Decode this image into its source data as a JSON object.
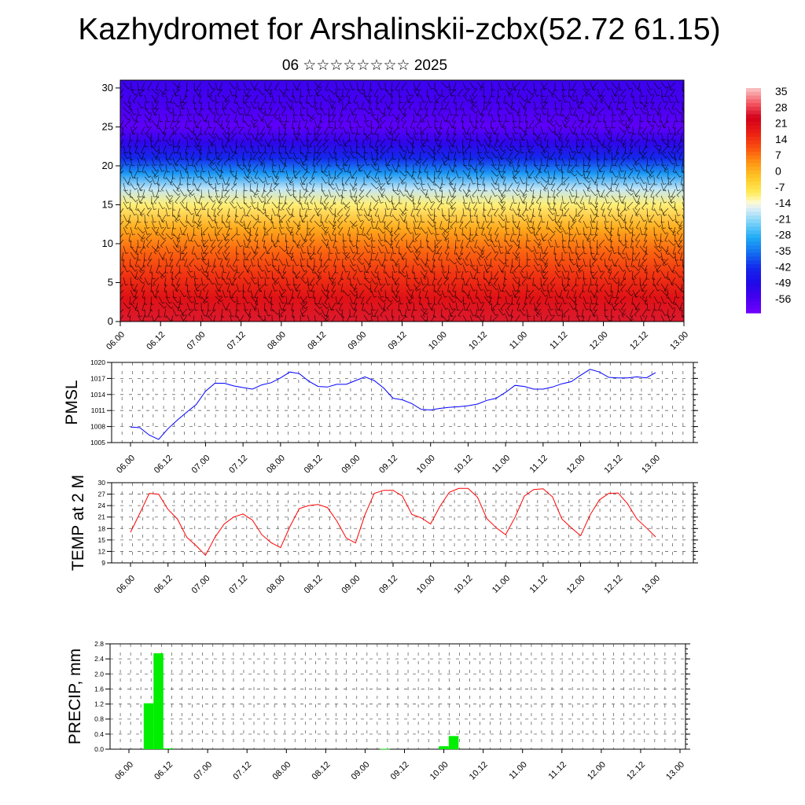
{
  "title": "Kazhydromet for Arshalinskii-zcbx(52.72 61.15)",
  "subtitle": "06 ☆☆☆☆☆☆☆☆ 2025",
  "x_tick_labels": [
    "06.00",
    "06.12",
    "07.00",
    "07.12",
    "08.00",
    "08.12",
    "09.00",
    "09.12",
    "10.00",
    "10.12",
    "11.00",
    "11.12",
    "12.00",
    "12.12",
    "13.00"
  ],
  "colors": {
    "pmsl_line": "#0000ff",
    "temp_line": "#ff0000",
    "precip_bar": "#00ee00",
    "wind_barbs": "#000000"
  },
  "chart_data": [
    {
      "type": "heatmap",
      "name": "cross-section",
      "y_ticks": [
        0,
        5,
        10,
        15,
        20,
        25,
        30
      ],
      "ylim": [
        0,
        31
      ],
      "x_labels_ref": "x_tick_labels",
      "colorbar": {
        "labels": [
          "35",
          "28",
          "21",
          "14",
          "7",
          "0",
          "-7",
          "-14",
          "-21",
          "-28",
          "-35",
          "-42",
          "-49",
          "-56"
        ],
        "range": [
          -63,
          42
        ]
      },
      "temperature_profile": [
        {
          "level": 0,
          "value": 30
        },
        {
          "level": 3,
          "value": 24
        },
        {
          "level": 6,
          "value": 18
        },
        {
          "level": 9,
          "value": 12
        },
        {
          "level": 12,
          "value": 4
        },
        {
          "level": 15,
          "value": -8
        },
        {
          "level": 17,
          "value": -16
        },
        {
          "level": 19,
          "value": -30
        },
        {
          "level": 21,
          "value": -42
        },
        {
          "level": 23,
          "value": -52
        },
        {
          "level": 25,
          "value": -60
        },
        {
          "level": 28,
          "value": -56
        },
        {
          "level": 31,
          "value": -54
        }
      ],
      "overlay": "wind barbs"
    },
    {
      "type": "line",
      "name": "pmsl",
      "ylabel": "PMSL",
      "ylim": [
        1005,
        1020
      ],
      "y_ticks": [
        1005,
        1008,
        1011,
        1014,
        1017,
        1020
      ],
      "x_labels_ref": "x_tick_labels",
      "x": [
        0,
        3,
        6,
        9,
        12,
        15,
        18,
        21,
        24,
        27,
        30,
        33,
        36,
        39,
        42,
        45,
        48,
        51,
        54,
        57,
        60,
        63,
        66,
        69,
        72,
        75,
        78,
        81,
        84,
        87,
        90,
        93,
        96,
        99,
        102,
        105,
        108,
        111,
        114,
        117,
        120,
        123,
        126,
        129,
        132,
        135,
        138,
        141,
        144,
        147,
        150,
        153,
        156,
        159,
        162,
        165,
        168
      ],
      "values": [
        1007.9,
        1007.8,
        1006.4,
        1005.6,
        1007.6,
        1009.2,
        1010.7,
        1012.1,
        1014.6,
        1016.1,
        1016.1,
        1015.6,
        1015.3,
        1015.0,
        1015.8,
        1016.2,
        1017.1,
        1018.2,
        1017.9,
        1016.5,
        1015.5,
        1015.4,
        1015.9,
        1015.9,
        1016.6,
        1017.3,
        1016.6,
        1015.2,
        1013.3,
        1013.0,
        1012.3,
        1011.2,
        1011.1,
        1011.4,
        1011.6,
        1011.7,
        1011.9,
        1012.2,
        1012.9,
        1013.3,
        1014.4,
        1015.7,
        1015.5,
        1015.0,
        1015.0,
        1015.4,
        1016.0,
        1016.4,
        1017.6,
        1018.7,
        1018.2,
        1017.2,
        1017.1,
        1017.1,
        1017.3,
        1017.1,
        1018.1
      ]
    },
    {
      "type": "line",
      "name": "temp",
      "ylabel": "TEMP at 2 M",
      "ylim": [
        9,
        30
      ],
      "y_ticks": [
        9,
        12,
        15,
        18,
        21,
        24,
        27,
        30
      ],
      "x_labels_ref": "x_tick_labels",
      "x": [
        0,
        3,
        6,
        9,
        12,
        15,
        18,
        21,
        24,
        27,
        30,
        33,
        36,
        39,
        42,
        45,
        48,
        51,
        54,
        57,
        60,
        63,
        66,
        69,
        72,
        75,
        78,
        81,
        84,
        87,
        90,
        93,
        96,
        99,
        102,
        105,
        108,
        111,
        114,
        117,
        120,
        123,
        126,
        129,
        132,
        135,
        138,
        141,
        144,
        147,
        150,
        153,
        156,
        159,
        162,
        165,
        168
      ],
      "values": [
        17,
        22,
        27.2,
        27,
        23,
        20.5,
        15.7,
        13.5,
        11,
        15.7,
        19.2,
        21,
        21.8,
        20.2,
        16.4,
        14.3,
        13,
        18.5,
        23.2,
        24,
        24.3,
        23.5,
        20,
        15.5,
        14.2,
        21.6,
        27.2,
        28,
        28,
        26.5,
        21.7,
        20.8,
        19.2,
        23.8,
        27.5,
        28.5,
        28.5,
        26.2,
        20.6,
        18.2,
        16.4,
        20.9,
        26.5,
        28.2,
        28.4,
        26.3,
        20.5,
        18.2,
        16.1,
        21.5,
        25.5,
        27.2,
        27.3,
        24.5,
        20.5,
        18.2,
        15.8
      ]
    },
    {
      "type": "bar",
      "name": "precip",
      "ylabel": "PRECIP, mm",
      "ylim": [
        0,
        2.8
      ],
      "y_ticks": [
        0.0,
        0.4,
        0.8,
        1.2,
        1.6,
        2.0,
        2.4,
        2.8
      ],
      "y_tick_labels": [
        "0.0",
        "0.4",
        "0.8",
        "1.2",
        "1.6",
        "2.0",
        "2.4",
        "2.8"
      ],
      "x_labels_ref": "x_tick_labels",
      "bin_hours": 3,
      "bars": [
        {
          "x": 6,
          "value": 1.22
        },
        {
          "x": 9,
          "value": 2.55
        },
        {
          "x": 12,
          "value": 0.02
        },
        {
          "x": 78,
          "value": 0.01
        },
        {
          "x": 96,
          "value": 0.08
        },
        {
          "x": 99,
          "value": 0.35
        }
      ]
    }
  ]
}
